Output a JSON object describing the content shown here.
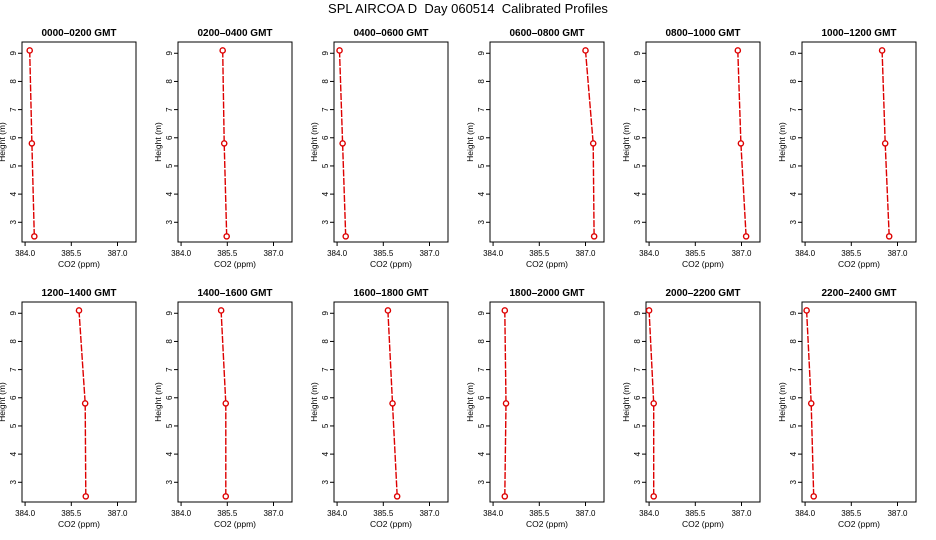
{
  "title": "SPL AIRCOA D  Day 060514  Calibrated Profiles",
  "colors": {
    "line": "#dd0000",
    "marker": "#dd0000",
    "axis": "#000000"
  },
  "chart_data": [
    {
      "type": "line",
      "title": "0000–0200 GMT",
      "xlabel": "CO2 (ppm)",
      "ylabel": "Height (m)",
      "xlim": [
        383.9,
        387.6
      ],
      "ylim": [
        2.3,
        9.4
      ],
      "xticks": [
        "384.0",
        "385.5",
        "387.0"
      ],
      "yticks": [
        "3",
        "4",
        "5",
        "6",
        "7",
        "8",
        "9"
      ],
      "grid": false,
      "series": [
        {
          "x": [
            384.15,
            384.22,
            384.3
          ],
          "y": [
            9.1,
            5.8,
            2.5
          ]
        }
      ]
    },
    {
      "type": "line",
      "title": "0200–0400 GMT",
      "xlabel": "CO2 (ppm)",
      "ylabel": "Height (m)",
      "xlim": [
        383.9,
        387.6
      ],
      "ylim": [
        2.3,
        9.4
      ],
      "xticks": [
        "384.0",
        "385.5",
        "387.0"
      ],
      "yticks": [
        "3",
        "4",
        "5",
        "6",
        "7",
        "8",
        "9"
      ],
      "grid": false,
      "series": [
        {
          "x": [
            385.35,
            385.4,
            385.48
          ],
          "y": [
            9.1,
            5.8,
            2.5
          ]
        }
      ]
    },
    {
      "type": "line",
      "title": "0400–0600 GMT",
      "xlabel": "CO2 (ppm)",
      "ylabel": "Height (m)",
      "xlim": [
        383.9,
        387.6
      ],
      "ylim": [
        2.3,
        9.4
      ],
      "xticks": [
        "384.0",
        "385.5",
        "387.0"
      ],
      "yticks": [
        "3",
        "4",
        "5",
        "6",
        "7",
        "8",
        "9"
      ],
      "grid": false,
      "series": [
        {
          "x": [
            384.08,
            384.18,
            384.28
          ],
          "y": [
            9.1,
            5.8,
            2.5
          ]
        }
      ]
    },
    {
      "type": "line",
      "title": "0600–0800 GMT",
      "xlabel": "CO2 (ppm)",
      "ylabel": "Height (m)",
      "xlim": [
        383.9,
        387.6
      ],
      "ylim": [
        2.3,
        9.4
      ],
      "xticks": [
        "384.0",
        "385.5",
        "387.0"
      ],
      "yticks": [
        "3",
        "4",
        "5",
        "6",
        "7",
        "8",
        "9"
      ],
      "grid": false,
      "series": [
        {
          "x": [
            387.0,
            387.25,
            387.28
          ],
          "y": [
            9.1,
            5.8,
            2.5
          ]
        }
      ]
    },
    {
      "type": "line",
      "title": "0800–1000 GMT",
      "xlabel": "CO2 (ppm)",
      "ylabel": "Height (m)",
      "xlim": [
        383.9,
        387.6
      ],
      "ylim": [
        2.3,
        9.4
      ],
      "xticks": [
        "384.0",
        "385.5",
        "387.0"
      ],
      "yticks": [
        "3",
        "4",
        "5",
        "6",
        "7",
        "8",
        "9"
      ],
      "grid": false,
      "series": [
        {
          "x": [
            386.88,
            386.98,
            387.15
          ],
          "y": [
            9.1,
            5.8,
            2.5
          ]
        }
      ]
    },
    {
      "type": "line",
      "title": "1000–1200 GMT",
      "xlabel": "CO2 (ppm)",
      "ylabel": "Height (m)",
      "xlim": [
        383.9,
        387.6
      ],
      "ylim": [
        2.3,
        9.4
      ],
      "xticks": [
        "384.0",
        "385.5",
        "387.0"
      ],
      "yticks": [
        "3",
        "4",
        "5",
        "6",
        "7",
        "8",
        "9"
      ],
      "grid": false,
      "series": [
        {
          "x": [
            386.5,
            386.6,
            386.73
          ],
          "y": [
            9.1,
            5.8,
            2.5
          ]
        }
      ]
    },
    {
      "type": "line",
      "title": "1200–1400 GMT",
      "xlabel": "CO2 (ppm)",
      "ylabel": "Height (m)",
      "xlim": [
        383.9,
        387.6
      ],
      "ylim": [
        2.3,
        9.4
      ],
      "xticks": [
        "384.0",
        "385.5",
        "387.0"
      ],
      "yticks": [
        "3",
        "4",
        "5",
        "6",
        "7",
        "8",
        "9"
      ],
      "grid": false,
      "series": [
        {
          "x": [
            385.75,
            385.95,
            385.97
          ],
          "y": [
            9.1,
            5.8,
            2.5
          ]
        }
      ]
    },
    {
      "type": "line",
      "title": "1400–1600 GMT",
      "xlabel": "CO2 (ppm)",
      "ylabel": "Height (m)",
      "xlim": [
        383.9,
        387.6
      ],
      "ylim": [
        2.3,
        9.4
      ],
      "xticks": [
        "384.0",
        "385.5",
        "387.0"
      ],
      "yticks": [
        "3",
        "4",
        "5",
        "6",
        "7",
        "8",
        "9"
      ],
      "grid": false,
      "series": [
        {
          "x": [
            385.3,
            385.45,
            385.45
          ],
          "y": [
            9.1,
            5.8,
            2.5
          ]
        }
      ]
    },
    {
      "type": "line",
      "title": "1600–1800 GMT",
      "xlabel": "CO2 (ppm)",
      "ylabel": "Height (m)",
      "xlim": [
        383.9,
        387.6
      ],
      "ylim": [
        2.3,
        9.4
      ],
      "xticks": [
        "384.0",
        "385.5",
        "387.0"
      ],
      "yticks": [
        "3",
        "4",
        "5",
        "6",
        "7",
        "8",
        "9"
      ],
      "grid": false,
      "series": [
        {
          "x": [
            385.65,
            385.8,
            385.95
          ],
          "y": [
            9.1,
            5.8,
            2.5
          ]
        }
      ]
    },
    {
      "type": "line",
      "title": "1800–2000 GMT",
      "xlabel": "CO2 (ppm)",
      "ylabel": "Height (m)",
      "xlim": [
        383.9,
        387.6
      ],
      "ylim": [
        2.3,
        9.4
      ],
      "xticks": [
        "384.0",
        "385.5",
        "387.0"
      ],
      "yticks": [
        "3",
        "4",
        "5",
        "6",
        "7",
        "8",
        "9"
      ],
      "grid": false,
      "series": [
        {
          "x": [
            384.38,
            384.42,
            384.38
          ],
          "y": [
            9.1,
            5.8,
            2.5
          ]
        }
      ]
    },
    {
      "type": "line",
      "title": "2000–2200 GMT",
      "xlabel": "CO2 (ppm)",
      "ylabel": "Height (m)",
      "xlim": [
        383.9,
        387.6
      ],
      "ylim": [
        2.3,
        9.4
      ],
      "xticks": [
        "384.0",
        "385.5",
        "387.0"
      ],
      "yticks": [
        "3",
        "4",
        "5",
        "6",
        "7",
        "8",
        "9"
      ],
      "grid": false,
      "series": [
        {
          "x": [
            384.0,
            384.15,
            384.15
          ],
          "y": [
            9.1,
            5.8,
            2.5
          ]
        }
      ]
    },
    {
      "type": "line",
      "title": "2200–2400 GMT",
      "xlabel": "CO2 (ppm)",
      "ylabel": "Height (m)",
      "xlim": [
        383.9,
        387.6
      ],
      "ylim": [
        2.3,
        9.4
      ],
      "xticks": [
        "384.0",
        "385.5",
        "387.0"
      ],
      "yticks": [
        "3",
        "4",
        "5",
        "6",
        "7",
        "8",
        "9"
      ],
      "grid": false,
      "series": [
        {
          "x": [
            384.05,
            384.2,
            384.28
          ],
          "y": [
            9.1,
            5.8,
            2.5
          ]
        }
      ]
    }
  ]
}
